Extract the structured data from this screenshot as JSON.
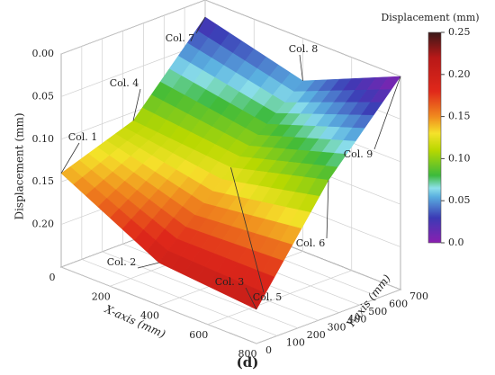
{
  "chart_data": {
    "type": "surface3d",
    "x_label": "X-axis (mm)",
    "y_label": "Y-axis (mm)",
    "z_label": "Displacement (mm)",
    "x": [
      0,
      400,
      800
    ],
    "y": [
      0,
      350,
      700
    ],
    "z": [
      [
        0.14,
        0.2,
        0.21
      ],
      [
        0.11,
        0.12,
        0.09
      ],
      [
        0.02,
        0.05,
        0.0
      ]
    ],
    "xlim": [
      0,
      800
    ],
    "xticks": [
      0,
      200,
      400,
      600,
      800
    ],
    "ylim": [
      0,
      700
    ],
    "yticks": [
      0,
      100,
      200,
      300,
      400,
      500,
      600,
      700
    ],
    "zlim": [
      0,
      0.25
    ],
    "zticks": [
      {
        "value": 0,
        "label": "0.00"
      },
      0.05,
      {
        "value": 0.1,
        "label": "0.10"
      },
      0.15,
      {
        "value": 0.2,
        "label": "0.20"
      }
    ],
    "zinverted": true,
    "columns": [
      "Col. 1",
      "Col. 2",
      "Col. 3",
      "Col. 4",
      "Col. 5",
      "Col. 6",
      "Col. 7",
      "Col. 8",
      "Col. 9"
    ],
    "colorbar": {
      "title": "Displacement (mm)",
      "lim": [
        0,
        0.25
      ],
      "ticks": [
        {
          "value": 0,
          "label": "0.0"
        },
        0.05,
        {
          "value": 0.1,
          "label": "0.10"
        },
        0.15,
        {
          "value": 0.2,
          "label": "0.20"
        },
        0.25
      ]
    },
    "panel_label": "(d)"
  }
}
